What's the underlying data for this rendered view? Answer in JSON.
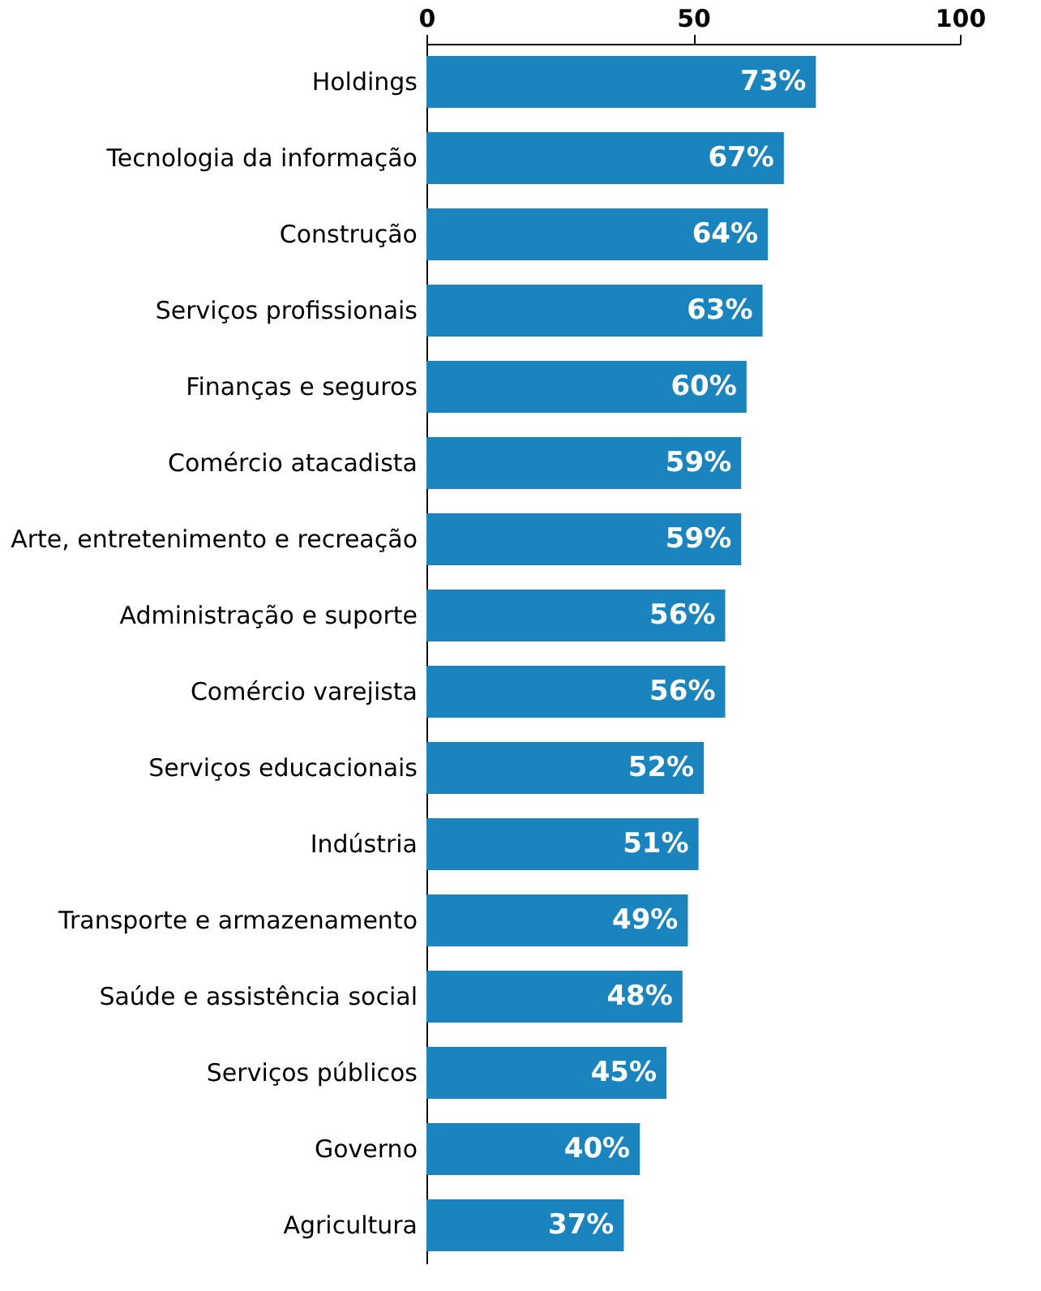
{
  "chart_data": {
    "type": "bar",
    "orientation": "horizontal",
    "categories": [
      "Holdings",
      "Tecnologia da informação",
      "Construção",
      "Serviços profissionais",
      "Finanças e seguros",
      "Comércio atacadista",
      "Arte, entretenimento e recreação",
      "Administração e suporte",
      "Comércio varejista",
      "Serviços educacionais",
      "Indústria",
      "Transporte e armazenamento",
      "Saúde e assistência social",
      "Serviços públicos",
      "Governo",
      "Agricultura"
    ],
    "values": [
      73,
      67,
      64,
      63,
      60,
      59,
      59,
      56,
      56,
      52,
      51,
      49,
      48,
      45,
      40,
      37
    ],
    "value_labels": [
      "73%",
      "67%",
      "64%",
      "63%",
      "60%",
      "59%",
      "59%",
      "56%",
      "56%",
      "52%",
      "51%",
      "49%",
      "48%",
      "45%",
      "40%",
      "37%"
    ],
    "color": "#1a84bf",
    "xlim": [
      0,
      100
    ],
    "xticks": [
      0,
      50,
      100
    ],
    "grid": false
  }
}
